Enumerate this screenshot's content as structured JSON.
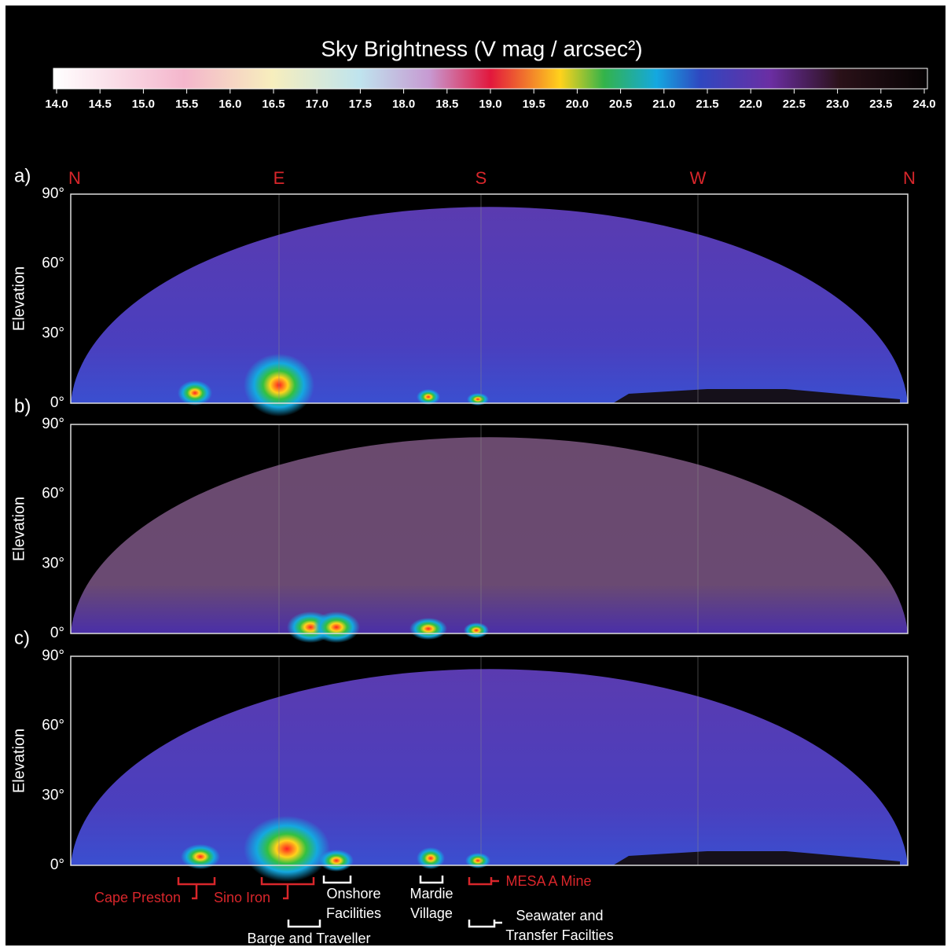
{
  "colorbar": {
    "title": "Sky Brightness (V mag / arcsec²)",
    "ticks": [
      "14.0",
      "14.5",
      "15.0",
      "15.5",
      "16.0",
      "16.5",
      "17.0",
      "17.5",
      "18.0",
      "18.5",
      "19.0",
      "19.5",
      "20.0",
      "20.5",
      "21.0",
      "21.5",
      "22.0",
      "22.5",
      "23.0",
      "23.5",
      "24.0"
    ]
  },
  "directions": [
    "N",
    "E",
    "S",
    "W",
    "N"
  ],
  "panels": [
    {
      "label": "a)",
      "ylabel": "Elevation",
      "yticks": [
        "90°",
        "60°",
        "30°",
        "0°"
      ]
    },
    {
      "label": "b)",
      "ylabel": "Elevation",
      "yticks": [
        "90°",
        "60°",
        "30°",
        "0°"
      ]
    },
    {
      "label": "c)",
      "ylabel": "Elevation",
      "yticks": [
        "90°",
        "60°",
        "30°",
        "0°"
      ]
    }
  ],
  "annotations": [
    {
      "lines": [
        "Cape Preston"
      ],
      "color": "#d8262b"
    },
    {
      "lines": [
        "Sino Iron"
      ],
      "color": "#d8262b"
    },
    {
      "lines": [
        "Onshore",
        "Facilities"
      ],
      "color": "#ffffff"
    },
    {
      "lines": [
        "Mardie",
        "Village"
      ],
      "color": "#ffffff"
    },
    {
      "lines": [
        "MESA A Mine"
      ],
      "color": "#d8262b"
    },
    {
      "lines": [
        "Barge and Traveller"
      ],
      "color": "#ffffff"
    },
    {
      "lines": [
        "Seawater and",
        "Transfer Facilties"
      ],
      "color": "#ffffff"
    }
  ]
}
